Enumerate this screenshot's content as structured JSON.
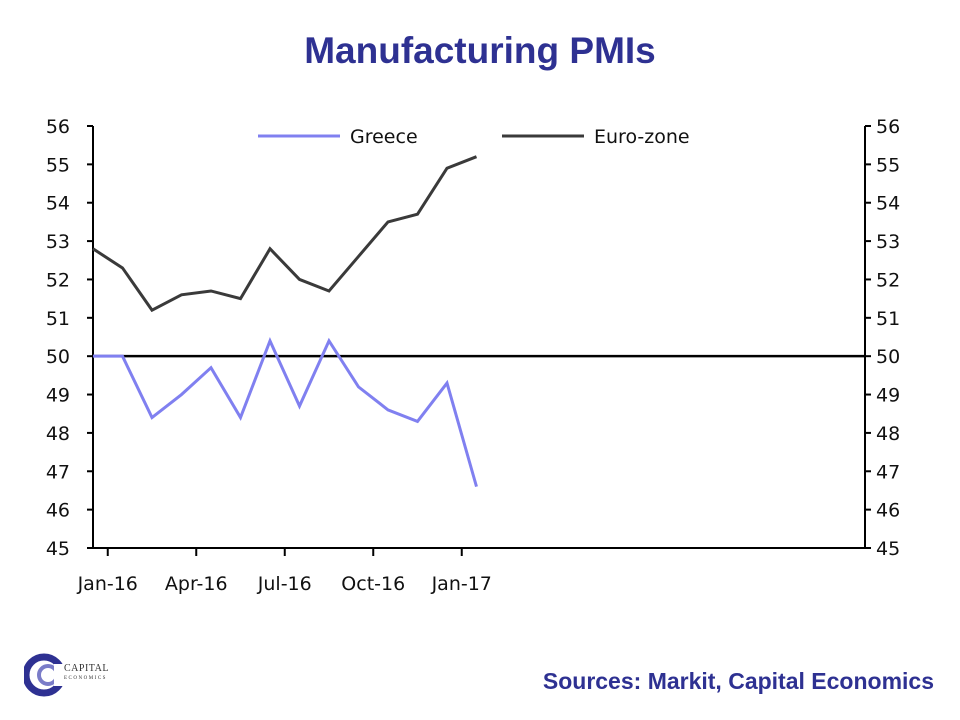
{
  "title": "Manufacturing PMIs",
  "sources": "Sources: Markit, Capital Economics",
  "logo": {
    "line1": "CAPITAL",
    "line2": "ECONOMICS"
  },
  "chart_data": {
    "type": "line",
    "title": "Manufacturing PMIs",
    "ylim": [
      45,
      56
    ],
    "y_ticks": [
      45,
      46,
      47,
      48,
      49,
      50,
      51,
      52,
      53,
      54,
      55,
      56
    ],
    "x": [
      "Dec-15",
      "Jan-16",
      "Feb-16",
      "Mar-16",
      "Apr-16",
      "May-16",
      "Jun-16",
      "Jul-16",
      "Aug-16",
      "Sep-16",
      "Oct-16",
      "Nov-16",
      "Dec-16",
      "Jan-17"
    ],
    "x_tick_labels": [
      "Jan-16",
      "Apr-16",
      "Jul-16",
      "Oct-16",
      "Jan-17"
    ],
    "reference_line": 50,
    "legend_position": "top",
    "grid": false,
    "series": [
      {
        "name": "Greece",
        "color": "#8080f0",
        "values": [
          50.0,
          50.0,
          48.4,
          49.0,
          49.7,
          48.4,
          50.4,
          48.7,
          50.4,
          49.2,
          48.6,
          48.3,
          49.3,
          46.6
        ]
      },
      {
        "name": "Euro-zone",
        "color": "#3a3a3a",
        "values": [
          52.8,
          52.3,
          51.2,
          51.6,
          51.7,
          51.5,
          52.8,
          52.0,
          51.7,
          52.6,
          53.5,
          53.7,
          54.9,
          55.2
        ]
      }
    ]
  }
}
